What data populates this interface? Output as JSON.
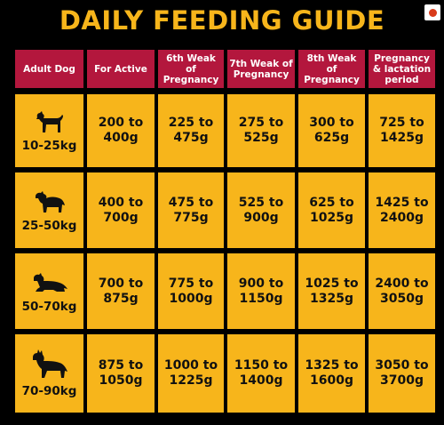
{
  "title": "DAILY FEEDING GUIDE",
  "colors": {
    "background": "#000000",
    "accent_yellow": "#f7b51b",
    "header_red": "#b3173d"
  },
  "table": {
    "headers": [
      "Adult Dog",
      "For Active",
      "6th Weak of Pregnancy",
      "7th Weak of Pregnancy",
      "8th Weak of Pregnancy",
      "Pregnancy & lactation period"
    ],
    "rows": [
      {
        "weight": "10-25kg",
        "icon": "small-dog-icon",
        "values": [
          "200 to 400g",
          "225 to 475g",
          "275 to 525g",
          "300 to 625g",
          "725 to 1425g"
        ]
      },
      {
        "weight": "25-50kg",
        "icon": "collie-dog-icon",
        "values": [
          "400 to 700g",
          "475 to 775g",
          "525 to 900g",
          "625 to 1025g",
          "1425 to 2400g"
        ]
      },
      {
        "weight": "50-70kg",
        "icon": "lying-dog-icon",
        "values": [
          "700 to 875g",
          "775 to 1000g",
          "900 to 1150g",
          "1025 to 1325g",
          "2400 to 3050g"
        ]
      },
      {
        "weight": "70-90kg",
        "icon": "shepherd-dog-icon",
        "values": [
          "875 to 1050g",
          "1000 to 1225g",
          "1150 to 1400g",
          "1325 to 1600g",
          "3050 to 3700g"
        ]
      }
    ]
  }
}
